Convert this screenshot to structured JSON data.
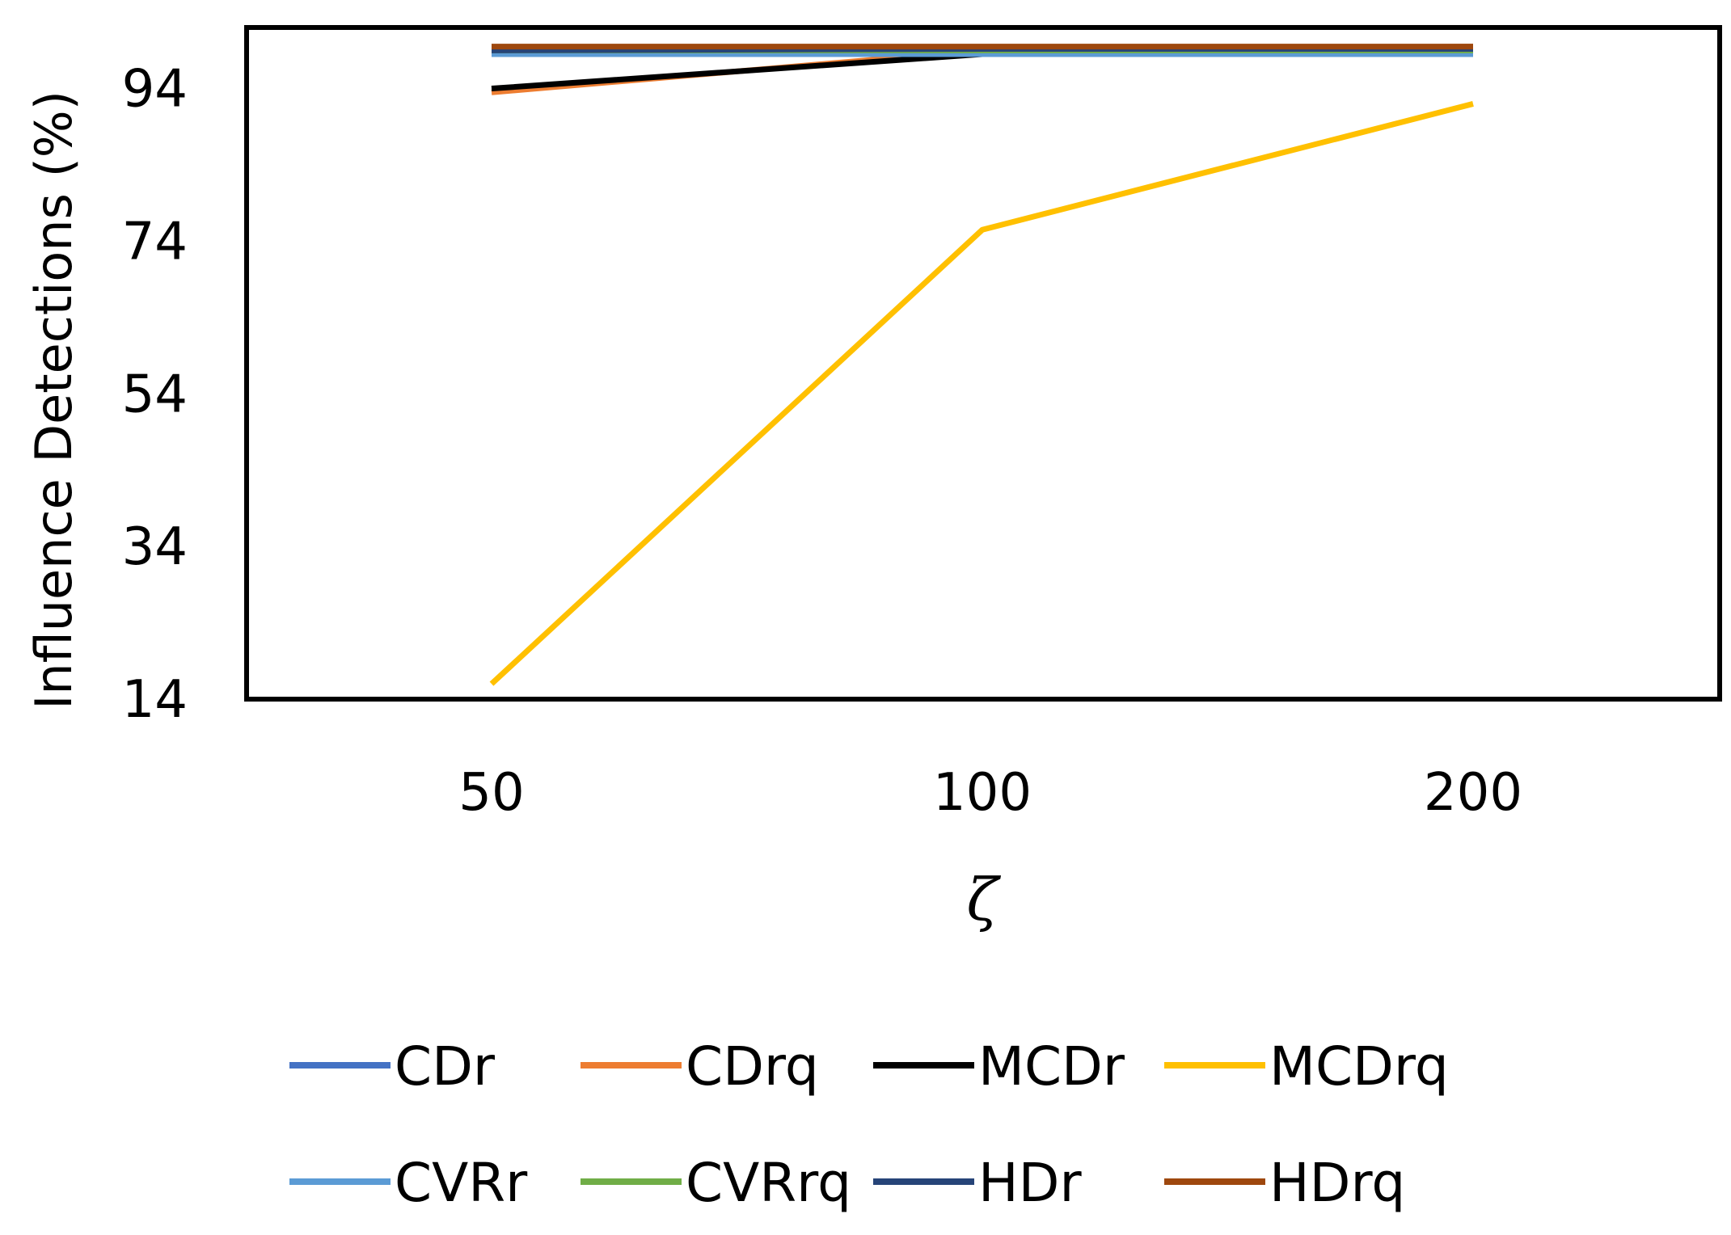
{
  "chart_data": {
    "type": "line",
    "title": "",
    "xlabel": "ζ",
    "ylabel": "Influence Detections (%)",
    "categories": [
      "50",
      "100",
      "200"
    ],
    "y_ticks": [
      14,
      34,
      54,
      74,
      94
    ],
    "ylim": [
      14,
      102
    ],
    "grid": false,
    "legend_position": "bottom",
    "series": [
      {
        "name": "CDr",
        "color": "#4472C4",
        "values": [
          98.5,
          98.5,
          99
        ]
      },
      {
        "name": "CDrq",
        "color": "#ED7D31",
        "values": [
          93.5,
          99,
          99.5
        ]
      },
      {
        "name": "MCDr",
        "color": "#000000",
        "values": [
          94,
          98.5,
          99
        ]
      },
      {
        "name": "MCDrq",
        "color": "#FFC000",
        "values": [
          16,
          75.5,
          92
        ]
      },
      {
        "name": "CVRr",
        "color": "#5B9BD5",
        "values": [
          98.5,
          98.5,
          98.5
        ]
      },
      {
        "name": "CVRrq",
        "color": "#70AD47",
        "values": [
          99,
          99,
          99
        ]
      },
      {
        "name": "HDr",
        "color": "#264478",
        "values": [
          99,
          99.2,
          99.2
        ]
      },
      {
        "name": "HDrq",
        "color": "#9E480E",
        "values": [
          99.5,
          99.5,
          99.5
        ]
      }
    ]
  }
}
